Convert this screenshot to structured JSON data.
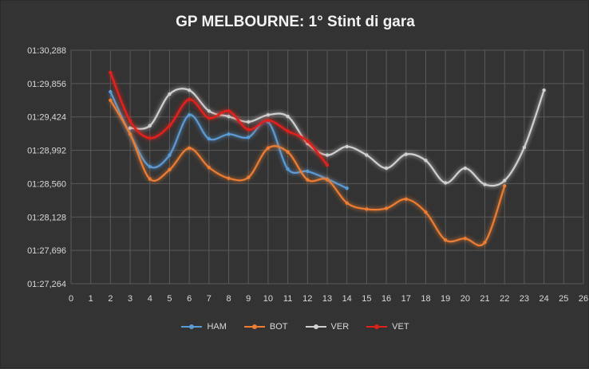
{
  "chart_data": {
    "type": "line",
    "title": "GP MELBOURNE: 1° Stint di gara",
    "xlabel": "",
    "ylabel": "",
    "xlim": [
      0,
      26
    ],
    "ylim": [
      87.264,
      90.288
    ],
    "x_ticks": [
      0,
      1,
      2,
      3,
      4,
      5,
      6,
      7,
      8,
      9,
      10,
      11,
      12,
      13,
      14,
      15,
      16,
      17,
      18,
      19,
      20,
      21,
      22,
      23,
      24,
      25,
      26
    ],
    "y_ticks": [
      87.264,
      87.696,
      88.128,
      88.56,
      88.992,
      89.424,
      89.856,
      90.288
    ],
    "y_tick_labels": [
      "01:27,264",
      "01:27,696",
      "01:28,128",
      "01:28,560",
      "01:28,992",
      "01:29,424",
      "01:29,856",
      "01:30,288"
    ],
    "grid": true,
    "legend_position": "bottom",
    "series": [
      {
        "name": "HAM",
        "color": "#5b9bd5",
        "x": [
          2,
          3,
          4,
          5,
          6,
          7,
          8,
          9,
          10,
          11,
          12,
          13,
          14
        ],
        "y": [
          89.75,
          89.2,
          88.78,
          88.93,
          89.45,
          89.14,
          89.2,
          89.16,
          89.36,
          88.75,
          88.72,
          88.62,
          88.5
        ]
      },
      {
        "name": "BOT",
        "color": "#ed7d31",
        "x": [
          2,
          3,
          4,
          5,
          6,
          7,
          8,
          9,
          10,
          11,
          12,
          13,
          14,
          15,
          16,
          17,
          18,
          19,
          20,
          21,
          22
        ],
        "y": [
          89.64,
          89.2,
          88.62,
          88.74,
          89.02,
          88.77,
          88.63,
          88.64,
          89.02,
          88.97,
          88.61,
          88.61,
          88.31,
          88.23,
          88.24,
          88.36,
          88.19,
          87.83,
          87.85,
          87.8,
          88.53
        ]
      },
      {
        "name": "VER",
        "color": "#d0d0d0",
        "x": [
          3,
          4,
          5,
          6,
          7,
          8,
          9,
          10,
          11,
          12,
          13,
          14,
          15,
          16,
          17,
          18,
          19,
          20,
          21,
          22,
          23,
          24
        ],
        "y": [
          89.28,
          89.31,
          89.72,
          89.77,
          89.5,
          89.43,
          89.36,
          89.45,
          89.43,
          89.08,
          88.93,
          89.04,
          88.93,
          88.76,
          88.94,
          88.86,
          88.57,
          88.76,
          88.55,
          88.6,
          89.03,
          89.77
        ]
      },
      {
        "name": "VET",
        "color": "#e0201a",
        "x": [
          2,
          3,
          4,
          5,
          6,
          7,
          8,
          9,
          10,
          11,
          12,
          13
        ],
        "y": [
          90.0,
          89.37,
          89.15,
          89.31,
          89.65,
          89.41,
          89.5,
          89.26,
          89.38,
          89.24,
          89.11,
          88.8
        ]
      }
    ]
  }
}
